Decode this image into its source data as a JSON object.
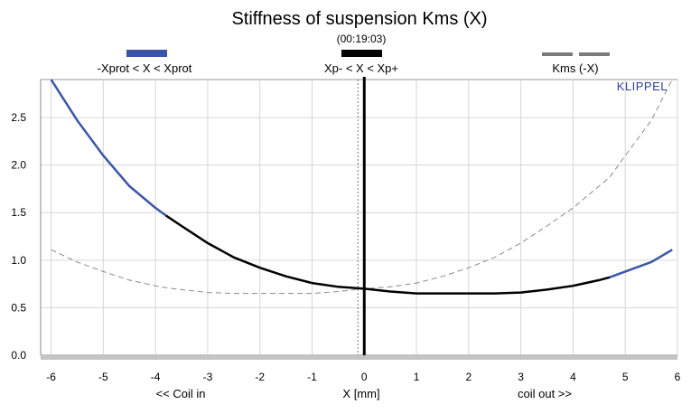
{
  "chart_data": {
    "type": "line",
    "title": "Stiffness of suspension Kms (X)",
    "subtitle": "(00:19:03)",
    "xlabel": "X [mm]",
    "xlabel_left": "<< Coil in",
    "xlabel_right": "coil out >>",
    "ylabel": "",
    "brand": "KLIPPEL",
    "xlim": [
      -6.2,
      6.0
    ],
    "ylim": [
      0.0,
      2.9
    ],
    "xticks": [
      -6,
      -5,
      -4,
      -3,
      -2,
      -1,
      0,
      1,
      2,
      3,
      4,
      5,
      6
    ],
    "yticks": [
      0.0,
      0.5,
      1.0,
      1.5,
      2.0,
      2.5
    ],
    "ytick_labels": [
      "0.0",
      "0.5",
      "1.0",
      "1.5",
      "2.0",
      "2.5"
    ],
    "grid": true,
    "legend_position": "top",
    "legend": [
      {
        "label": "-Xprot < X < Xprot",
        "color": "#3a55a8",
        "style": "solid"
      },
      {
        "label": "Xp- < X < Xp+",
        "color": "#000000",
        "style": "solid"
      },
      {
        "label": "Kms (-X)",
        "color": "#7a7a7a",
        "style": "dashed"
      }
    ],
    "x": [
      -6.0,
      -5.5,
      -5.0,
      -4.5,
      -4.0,
      -3.8,
      -3.5,
      -3.0,
      -2.5,
      -2.0,
      -1.5,
      -1.0,
      -0.5,
      0.0,
      0.5,
      1.0,
      1.5,
      2.0,
      2.5,
      3.0,
      3.5,
      4.0,
      4.5,
      4.7,
      5.0,
      5.5,
      5.9
    ],
    "series": [
      {
        "name": "Kms (X)",
        "values": [
          2.9,
          2.47,
          2.1,
          1.78,
          1.55,
          1.47,
          1.36,
          1.18,
          1.03,
          0.92,
          0.83,
          0.76,
          0.72,
          0.7,
          0.67,
          0.65,
          0.65,
          0.65,
          0.65,
          0.66,
          0.69,
          0.73,
          0.79,
          0.82,
          0.88,
          0.98,
          1.11
        ]
      },
      {
        "name": "Kms (-X)",
        "values": [
          1.11,
          0.98,
          0.88,
          0.79,
          0.73,
          0.71,
          0.69,
          0.66,
          0.65,
          0.65,
          0.65,
          0.65,
          0.67,
          0.7,
          0.72,
          0.76,
          0.83,
          0.92,
          1.03,
          1.18,
          1.36,
          1.55,
          1.78,
          1.87,
          2.1,
          2.47,
          2.9
        ]
      }
    ],
    "range_markers": {
      "xprot": [
        -3.8,
        4.7
      ],
      "xp": [
        -3.8,
        4.7
      ]
    },
    "vertical_line_x": 0
  }
}
